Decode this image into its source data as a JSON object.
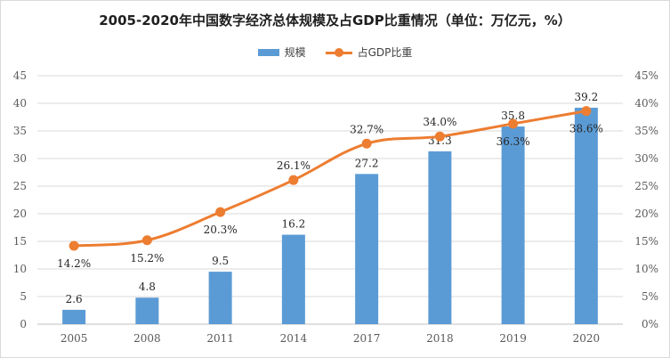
{
  "chart_data": {
    "type": "bar+line",
    "title": "2005-2020年中国数字经济总体规模及占GDP比重情况（单位：万亿元，%）",
    "categories": [
      "2005",
      "2008",
      "2011",
      "2014",
      "2017",
      "2018",
      "2019",
      "2020"
    ],
    "series": [
      {
        "name": "规模",
        "type": "bar",
        "axis": "left",
        "values": [
          2.6,
          4.8,
          9.5,
          16.2,
          27.2,
          31.3,
          35.8,
          39.2
        ],
        "labels": [
          "2.6",
          "4.8",
          "9.5",
          "16.2",
          "27.2",
          "31.3",
          "35.8",
          "39.2"
        ]
      },
      {
        "name": "占GDP比重",
        "type": "line",
        "axis": "right",
        "values": [
          14.2,
          15.2,
          20.3,
          26.1,
          32.7,
          34.0,
          36.3,
          38.6
        ],
        "labels": [
          "14.2%",
          "15.2%",
          "20.3%",
          "26.1%",
          "32.7%",
          "34.0%",
          "36.3%",
          "38.6%"
        ]
      }
    ],
    "y_left": {
      "min": 0,
      "max": 45,
      "ticks": [
        "0",
        "5",
        "10",
        "15",
        "20",
        "25",
        "30",
        "35",
        "40",
        "45"
      ]
    },
    "y_right": {
      "min": 0,
      "max": 45,
      "ticks": [
        "0%",
        "5%",
        "10%",
        "15%",
        "20%",
        "25%",
        "30%",
        "35%",
        "40%",
        "45%"
      ]
    },
    "grid": true,
    "legend_position": "top-center",
    "colors": {
      "bar": "#5b9bd5",
      "line": "#ed7d31",
      "grid": "#d9d9d9"
    }
  }
}
